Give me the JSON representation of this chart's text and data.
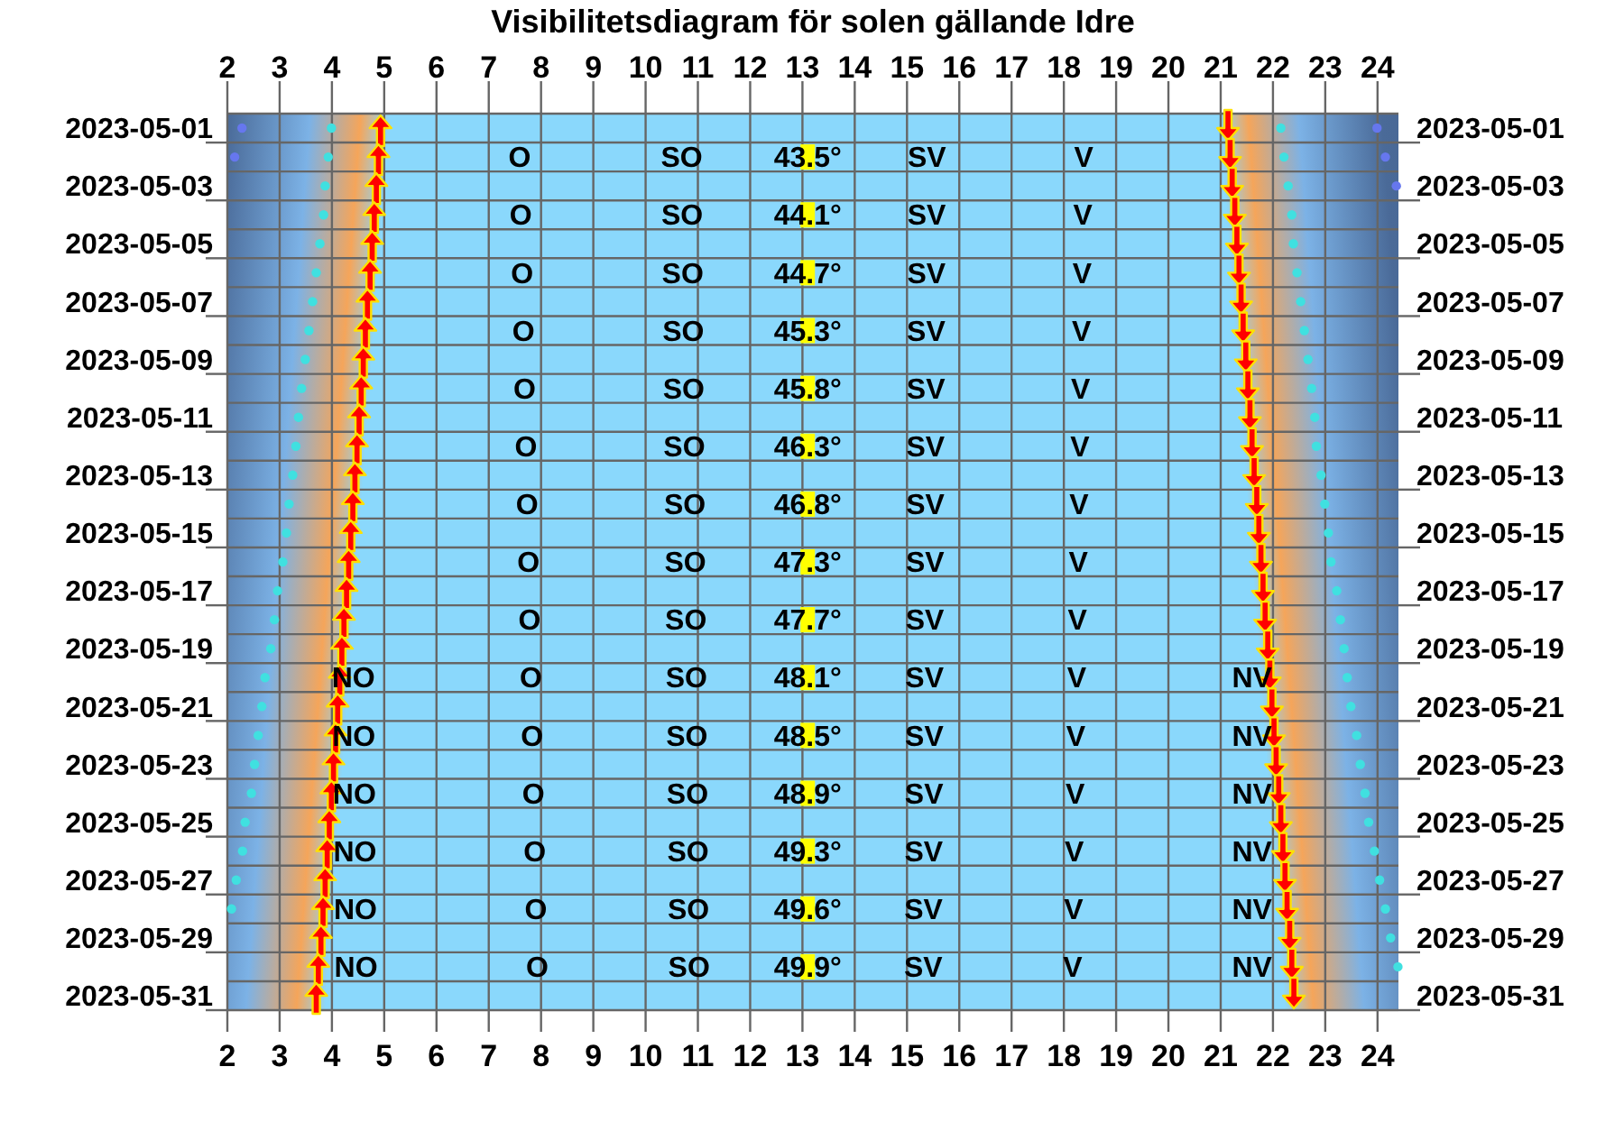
{
  "chart_data": {
    "type": "scatter",
    "title": "Visibilitetsdiagram för solen gällande Idre",
    "orientation": "horizontal",
    "grid": true,
    "categories": [
      "2023-05-01",
      null,
      "2023-05-03",
      null,
      "2023-05-05",
      null,
      "2023-05-07",
      null,
      "2023-05-09",
      null,
      "2023-05-11",
      null,
      "2023-05-13",
      null,
      "2023-05-15",
      null,
      "2023-05-17",
      null,
      "2023-05-19",
      null,
      "2023-05-21",
      null,
      "2023-05-23",
      null,
      "2023-05-25",
      null,
      "2023-05-27",
      null,
      "2023-05-29",
      null,
      "2023-05-31"
    ],
    "y2_categories": [
      "2023-05-01",
      null,
      "2023-05-03",
      null,
      "2023-05-05",
      null,
      "2023-05-07",
      null,
      "2023-05-09",
      null,
      "2023-05-11",
      null,
      "2023-05-13",
      null,
      "2023-05-15",
      null,
      "2023-05-17",
      null,
      "2023-05-19",
      null,
      "2023-05-21",
      null,
      "2023-05-23",
      null,
      "2023-05-25",
      null,
      "2023-05-27",
      null,
      "2023-05-29",
      null,
      "2023-05-31"
    ],
    "xlim": [
      2,
      24.4
    ],
    "xticks": [
      2,
      3,
      4,
      5,
      6,
      7,
      8,
      9,
      10,
      11,
      12,
      13,
      14,
      15,
      16,
      17,
      18,
      19,
      20,
      21,
      22,
      23,
      24
    ],
    "x2lim": [
      2,
      24.4
    ],
    "x2ticks": [
      2,
      3,
      4,
      5,
      6,
      7,
      8,
      9,
      10,
      11,
      12,
      13,
      14,
      15,
      16,
      17,
      18,
      19,
      20,
      21,
      22,
      23,
      24
    ],
    "series": [
      {
        "marker": "triangle",
        "color": "#ff0000",
        "values": [
          4.93,
          4.89,
          4.85,
          4.81,
          4.77,
          4.73,
          4.68,
          4.64,
          4.6,
          4.56,
          4.52,
          4.48,
          4.44,
          4.4,
          4.36,
          4.32,
          4.28,
          4.23,
          4.19,
          4.15,
          4.11,
          4.07,
          4.03,
          3.99,
          3.95,
          3.91,
          3.87,
          3.83,
          3.79,
          3.74,
          3.7
        ]
      },
      {
        "marker": "triangle",
        "color": "#ff0000",
        "values": [
          21.14,
          21.18,
          21.22,
          21.27,
          21.31,
          21.35,
          21.39,
          21.43,
          21.48,
          21.52,
          21.56,
          21.6,
          21.64,
          21.69,
          21.73,
          21.77,
          21.81,
          21.85,
          21.9,
          21.94,
          21.98,
          22.02,
          22.06,
          22.11,
          22.15,
          22.19,
          22.23,
          22.27,
          22.32,
          22.36,
          22.4
        ]
      },
      {
        "marker": "circle",
        "color": "#40e0e0",
        "values": [
          3.99,
          3.93,
          3.87,
          3.84,
          3.77,
          3.7,
          3.63,
          3.56,
          3.49,
          3.42,
          3.36,
          3.31,
          3.25,
          3.18,
          3.13,
          3.06,
          2.96,
          2.9,
          2.83,
          2.72,
          2.66,
          2.59,
          2.52,
          2.46,
          2.34,
          2.29,
          2.17,
          2.08,
          null,
          null,
          null
        ]
      },
      {
        "marker": "circle",
        "color": "#40e0e0",
        "values": [
          22.15,
          22.21,
          22.29,
          22.36,
          22.39,
          22.46,
          22.53,
          22.6,
          22.67,
          22.74,
          22.8,
          22.83,
          22.92,
          22.99,
          23.06,
          23.11,
          23.22,
          23.29,
          23.36,
          23.42,
          23.49,
          23.6,
          23.67,
          23.76,
          23.83,
          23.94,
          24.04,
          24.15,
          24.25,
          24.39,
          null
        ]
      },
      {
        "marker": "circle",
        "color": "#6677ee",
        "values": [
          2.28,
          2.14,
          null,
          null,
          null,
          null,
          null,
          null,
          null,
          null,
          null,
          null,
          null,
          null,
          null,
          null,
          null,
          null,
          null,
          null,
          null,
          null,
          null,
          null,
          null,
          null,
          null,
          null,
          null,
          null,
          null
        ]
      },
      {
        "marker": "circle",
        "color": "#6677ee",
        "values": [
          23.99,
          24.15,
          24.36,
          null,
          null,
          null,
          null,
          null,
          null,
          null,
          null,
          null,
          null,
          null,
          null,
          null,
          null,
          null,
          null,
          null,
          null,
          null,
          null,
          null,
          null,
          null,
          null,
          null,
          null,
          null,
          null
        ]
      },
      {
        "marker": "square",
        "color": "#ffff00",
        "values": [
          null,
          13.1,
          null,
          13.1,
          null,
          13.1,
          null,
          13.1,
          null,
          13.1,
          null,
          13.1,
          null,
          13.1,
          null,
          13.1,
          null,
          13.1,
          null,
          13.1,
          null,
          13.1,
          null,
          13.1,
          null,
          13.1,
          null,
          13.1,
          null,
          13.1,
          null
        ]
      }
    ],
    "annotations": [
      "O",
      "SO",
      "SV",
      "V",
      "O",
      "SO",
      "SV",
      "V",
      "O",
      "SO",
      "SV",
      "V",
      "O",
      "SO",
      "SV",
      "V",
      "O",
      "SO",
      "SV",
      "V",
      "O",
      "SO",
      "SV",
      "V",
      "O",
      "SO",
      "SV",
      "V",
      "O",
      "SO",
      "SV",
      "V",
      "O",
      "SO",
      "SV",
      "V",
      "NO",
      "O",
      "SO",
      "SV",
      "V",
      "NV",
      "NO",
      "O",
      "SO",
      "SV",
      "V",
      "NV",
      "NO",
      "O",
      "SO",
      "SV",
      "V",
      "NV",
      "NO",
      "O",
      "SO",
      "SV",
      "V",
      "NV",
      "NO",
      "O",
      "SO",
      "SV",
      "V",
      "NV",
      "NO",
      "O",
      "SO",
      "SV",
      "V",
      "NV",
      "43.5°",
      "44.1°",
      "44.7°",
      "45.3°",
      "45.8°",
      "46.3°",
      "46.8°",
      "47.3°",
      "47.7°",
      "48.1°",
      "48.5°",
      "48.9°",
      "49.3°",
      "49.6°",
      "49.9°"
    ]
  }
}
